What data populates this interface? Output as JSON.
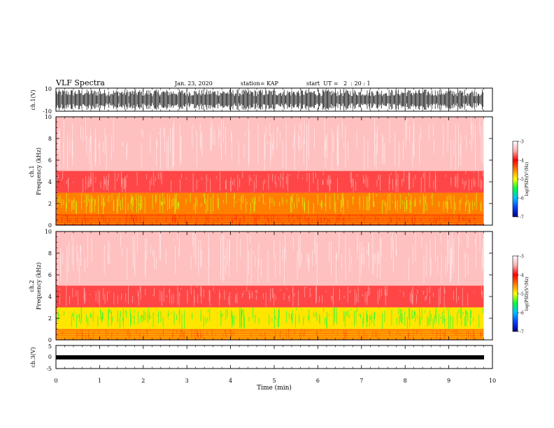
{
  "header": {
    "title": "VLF Spectra",
    "date": "Jan. 23, 2020",
    "station": "station= KAP",
    "start": "start  UT =   2  : 20 : 1"
  },
  "panels": {
    "ch1_waveform": {
      "ylabel": "ch.1(V)",
      "ticks": [
        "10",
        "-10"
      ],
      "ylim": [
        -10,
        10
      ]
    },
    "ch1_spectrum": {
      "ylabel": "ch.1\nFrequency (kHz)",
      "ticks": [
        "0",
        "2",
        "4",
        "6",
        "8",
        "10"
      ],
      "ylim": [
        0,
        10
      ]
    },
    "ch2_spectrum": {
      "ylabel": "ch.2\nFrequency (kHz)",
      "ticks": [
        "0",
        "2",
        "4",
        "6",
        "8",
        "10"
      ],
      "ylim": [
        0,
        10
      ]
    },
    "ch3_waveform": {
      "ylabel": "ch.3(V)",
      "ticks": [
        "5",
        "0",
        "-5"
      ],
      "ylim": [
        -5,
        5
      ]
    }
  },
  "colorbar": {
    "label": "log(PSD)(V²/Hz)",
    "ticks": [
      "-3",
      "-4",
      "-5",
      "-6",
      "-7"
    ],
    "range": [
      -7,
      -3
    ],
    "colors": [
      "#000080",
      "#0040ff",
      "#00c0ff",
      "#00ff40",
      "#ffff00",
      "#ff8000",
      "#ff0000",
      "#ffb0b0",
      "#ffffff"
    ]
  },
  "xaxis": {
    "label": "Time (min)",
    "ticks": [
      "0",
      "1",
      "2",
      "3",
      "4",
      "5",
      "6",
      "7",
      "8",
      "9",
      "10"
    ],
    "xlim": [
      0,
      10
    ],
    "data_end": 9.8
  },
  "chart_data": [
    {
      "type": "line",
      "title": "VLF Spectra",
      "ylabel": "ch.1(V)",
      "xlabel": "Time (min)",
      "xlim": [
        0,
        10
      ],
      "ylim": [
        -10,
        10
      ],
      "series": [
        {
          "values_range": [
            -9,
            9
          ]
        }
      ]
    },
    {
      "type": "heatmap",
      "ylabel": "ch.1 Frequency (kHz)",
      "xlim": [
        0,
        10
      ],
      "ylim": [
        0,
        10
      ],
      "bands": [
        {
          "freq_khz": [
            0,
            1
          ],
          "log_psd": -4.3
        },
        {
          "freq_khz": [
            1,
            3
          ],
          "log_psd": -4.5
        },
        {
          "freq_khz": [
            3,
            5
          ],
          "log_psd": -3.8
        },
        {
          "freq_khz": [
            5,
            10
          ],
          "log_psd": -3.4
        }
      ]
    },
    {
      "type": "heatmap",
      "ylabel": "ch.2 Frequency (kHz)",
      "xlim": [
        0,
        10
      ],
      "ylim": [
        0,
        10
      ],
      "bands": [
        {
          "freq_khz": [
            0,
            1
          ],
          "log_psd": -4.5
        },
        {
          "freq_khz": [
            1,
            3
          ],
          "log_psd": -4.9
        },
        {
          "freq_khz": [
            3,
            5
          ],
          "log_psd": -3.8
        },
        {
          "freq_khz": [
            5,
            10
          ],
          "log_psd": -3.4
        }
      ]
    },
    {
      "type": "line",
      "ylabel": "ch.3(V)",
      "xlabel": "Time (min)",
      "xlim": [
        0,
        10
      ],
      "ylim": [
        -5,
        5
      ],
      "series": [
        {
          "values_range": [
            -0.5,
            0.5
          ]
        }
      ]
    }
  ]
}
